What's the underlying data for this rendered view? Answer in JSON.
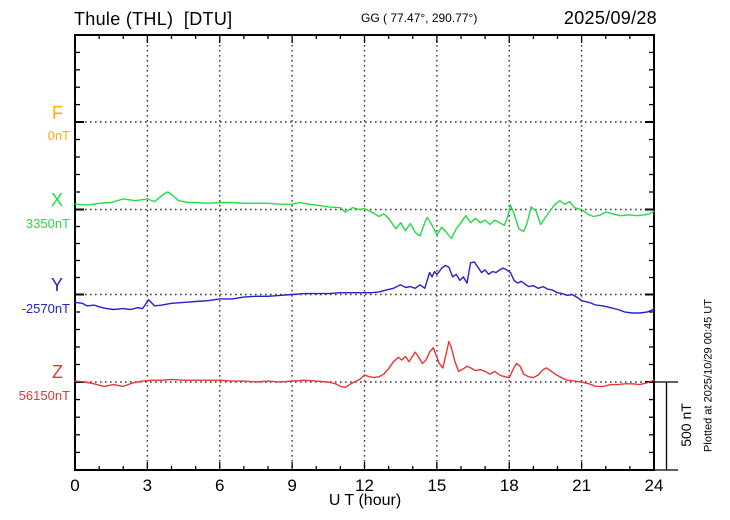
{
  "header": {
    "title": "Thule (THL)  [DTU]",
    "coordinates": "GG ( 77.47°, 290.77°)",
    "date": "2025/09/28"
  },
  "axes": {
    "x_label": "U T (hour)",
    "x_ticks": [
      "0",
      "3",
      "6",
      "9",
      "12",
      "15",
      "18",
      "21",
      "24"
    ],
    "x_range_hours": [
      0,
      24
    ],
    "x_major_interval_hours": 3,
    "x_minor_interval_hours": 1,
    "y_division_nT": 100,
    "y_channel_spacing_nT": 500
  },
  "scale_bar": {
    "label": "500 nT",
    "nT": 500
  },
  "footer_note": "Plotted at 2025/10/29 00:45 UT",
  "chart_data": {
    "type": "line",
    "title": "Thule (THL) [DTU] magnetogram, 2025/09/28",
    "xlabel": "U T (hour)",
    "x_range": [
      0,
      24
    ],
    "grid": "dotted vertical lines every 3 h; dotted horizontal line at each channel baseline",
    "legend_position": "left margin, one colored label per channel",
    "scale": "500 nT per channel division (scale bar at lower right)",
    "series": [
      {
        "name": "F",
        "value_label": "0nT",
        "baseline_nT": 0,
        "color": "#FFAD00",
        "points": []
      },
      {
        "name": "X",
        "value_label": "3350nT",
        "baseline_nT": 3350,
        "color": "#22DD44",
        "points": [
          [
            0,
            3380
          ],
          [
            0.5,
            3375
          ],
          [
            1,
            3385
          ],
          [
            1.5,
            3390
          ],
          [
            2,
            3410
          ],
          [
            2.5,
            3400
          ],
          [
            3,
            3410
          ],
          [
            3.3,
            3395
          ],
          [
            3.7,
            3440
          ],
          [
            3.85,
            3450
          ],
          [
            4,
            3435
          ],
          [
            4.3,
            3400
          ],
          [
            4.7,
            3390
          ],
          [
            5,
            3390
          ],
          [
            5.5,
            3385
          ],
          [
            6,
            3390
          ],
          [
            6.5,
            3390
          ],
          [
            7,
            3385
          ],
          [
            7.5,
            3385
          ],
          [
            8,
            3385
          ],
          [
            8.5,
            3380
          ],
          [
            9,
            3380
          ],
          [
            9.3,
            3390
          ],
          [
            9.7,
            3380
          ],
          [
            10,
            3375
          ],
          [
            10.5,
            3365
          ],
          [
            11,
            3360
          ],
          [
            11.2,
            3335
          ],
          [
            11.5,
            3360
          ],
          [
            11.8,
            3350
          ],
          [
            12,
            3355
          ],
          [
            12.3,
            3335
          ],
          [
            12.6,
            3310
          ],
          [
            12.8,
            3325
          ],
          [
            13,
            3300
          ],
          [
            13.3,
            3240
          ],
          [
            13.5,
            3275
          ],
          [
            13.7,
            3230
          ],
          [
            13.9,
            3270
          ],
          [
            14.1,
            3220
          ],
          [
            14.3,
            3200
          ],
          [
            14.5,
            3275
          ],
          [
            14.6,
            3305
          ],
          [
            14.8,
            3260
          ],
          [
            15,
            3205
          ],
          [
            15.2,
            3250
          ],
          [
            15.4,
            3220
          ],
          [
            15.6,
            3185
          ],
          [
            15.8,
            3240
          ],
          [
            16,
            3275
          ],
          [
            16.2,
            3315
          ],
          [
            16.4,
            3275
          ],
          [
            16.6,
            3300
          ],
          [
            16.8,
            3275
          ],
          [
            17,
            3290
          ],
          [
            17.2,
            3265
          ],
          [
            17.4,
            3290
          ],
          [
            17.6,
            3275
          ],
          [
            17.8,
            3260
          ],
          [
            17.95,
            3315
          ],
          [
            18.05,
            3375
          ],
          [
            18.2,
            3325
          ],
          [
            18.4,
            3240
          ],
          [
            18.6,
            3225
          ],
          [
            18.75,
            3275
          ],
          [
            18.9,
            3365
          ],
          [
            19.1,
            3345
          ],
          [
            19.3,
            3265
          ],
          [
            19.5,
            3305
          ],
          [
            19.7,
            3345
          ],
          [
            19.9,
            3380
          ],
          [
            20.1,
            3400
          ],
          [
            20.3,
            3380
          ],
          [
            20.5,
            3395
          ],
          [
            20.7,
            3360
          ],
          [
            21,
            3350
          ],
          [
            21.3,
            3320
          ],
          [
            21.5,
            3310
          ],
          [
            21.8,
            3320
          ],
          [
            22,
            3335
          ],
          [
            22.3,
            3325
          ],
          [
            22.6,
            3315
          ],
          [
            23,
            3320
          ],
          [
            23.3,
            3315
          ],
          [
            23.6,
            3320
          ],
          [
            23.8,
            3325
          ],
          [
            24,
            3340
          ]
        ]
      },
      {
        "name": "Y",
        "value_label": "-2570nT",
        "baseline_nT": -2570,
        "color": "#2323CC",
        "points": [
          [
            0,
            -2615
          ],
          [
            0.3,
            -2620
          ],
          [
            0.5,
            -2635
          ],
          [
            0.8,
            -2630
          ],
          [
            1,
            -2640
          ],
          [
            1.3,
            -2650
          ],
          [
            1.6,
            -2655
          ],
          [
            2,
            -2650
          ],
          [
            2.3,
            -2655
          ],
          [
            2.6,
            -2645
          ],
          [
            2.8,
            -2650
          ],
          [
            3.05,
            -2600
          ],
          [
            3.3,
            -2635
          ],
          [
            3.6,
            -2630
          ],
          [
            4,
            -2620
          ],
          [
            4.5,
            -2615
          ],
          [
            5,
            -2610
          ],
          [
            5.5,
            -2605
          ],
          [
            6,
            -2595
          ],
          [
            6.5,
            -2595
          ],
          [
            7,
            -2585
          ],
          [
            7.5,
            -2580
          ],
          [
            8,
            -2580
          ],
          [
            8.5,
            -2575
          ],
          [
            9,
            -2570
          ],
          [
            9.5,
            -2565
          ],
          [
            10,
            -2565
          ],
          [
            10.5,
            -2565
          ],
          [
            11,
            -2560
          ],
          [
            11.5,
            -2560
          ],
          [
            12,
            -2560
          ],
          [
            12.3,
            -2560
          ],
          [
            12.6,
            -2555
          ],
          [
            12.9,
            -2545
          ],
          [
            13.2,
            -2535
          ],
          [
            13.5,
            -2515
          ],
          [
            13.7,
            -2530
          ],
          [
            13.9,
            -2525
          ],
          [
            14.1,
            -2535
          ],
          [
            14.3,
            -2515
          ],
          [
            14.5,
            -2535
          ],
          [
            14.7,
            -2445
          ],
          [
            14.8,
            -2470
          ],
          [
            14.9,
            -2440
          ],
          [
            15,
            -2455
          ],
          [
            15.1,
            -2440
          ],
          [
            15.2,
            -2420
          ],
          [
            15.35,
            -2405
          ],
          [
            15.5,
            -2415
          ],
          [
            15.65,
            -2470
          ],
          [
            15.8,
            -2455
          ],
          [
            15.95,
            -2490
          ],
          [
            16.1,
            -2470
          ],
          [
            16.25,
            -2505
          ],
          [
            16.4,
            -2390
          ],
          [
            16.55,
            -2385
          ],
          [
            16.7,
            -2415
          ],
          [
            16.85,
            -2445
          ],
          [
            17,
            -2430
          ],
          [
            17.15,
            -2455
          ],
          [
            17.3,
            -2440
          ],
          [
            17.45,
            -2445
          ],
          [
            17.6,
            -2430
          ],
          [
            17.75,
            -2420
          ],
          [
            17.9,
            -2430
          ],
          [
            18.05,
            -2445
          ],
          [
            18.2,
            -2490
          ],
          [
            18.35,
            -2505
          ],
          [
            18.5,
            -2495
          ],
          [
            18.65,
            -2510
          ],
          [
            18.8,
            -2525
          ],
          [
            19,
            -2520
          ],
          [
            19.2,
            -2535
          ],
          [
            19.4,
            -2525
          ],
          [
            19.6,
            -2540
          ],
          [
            19.8,
            -2545
          ],
          [
            20,
            -2560
          ],
          [
            20.2,
            -2565
          ],
          [
            20.4,
            -2575
          ],
          [
            20.6,
            -2570
          ],
          [
            20.8,
            -2585
          ],
          [
            21,
            -2605
          ],
          [
            21.3,
            -2615
          ],
          [
            21.6,
            -2630
          ],
          [
            21.9,
            -2635
          ],
          [
            22.2,
            -2645
          ],
          [
            22.5,
            -2655
          ],
          [
            22.8,
            -2670
          ],
          [
            23.1,
            -2675
          ],
          [
            23.4,
            -2675
          ],
          [
            23.7,
            -2670
          ],
          [
            23.9,
            -2660
          ],
          [
            24,
            -2650
          ]
        ]
      },
      {
        "name": "Z",
        "value_label": "56150nT",
        "baseline_nT": 56150,
        "color": "#EE3333",
        "points": [
          [
            0,
            56155
          ],
          [
            0.4,
            56150
          ],
          [
            0.8,
            56140
          ],
          [
            1.2,
            56125
          ],
          [
            1.6,
            56135
          ],
          [
            2,
            56125
          ],
          [
            2.4,
            56145
          ],
          [
            2.8,
            56155
          ],
          [
            3.2,
            56160
          ],
          [
            3.6,
            56160
          ],
          [
            4,
            56165
          ],
          [
            4.5,
            56160
          ],
          [
            5,
            56160
          ],
          [
            5.5,
            56160
          ],
          [
            6,
            56160
          ],
          [
            6.5,
            56155
          ],
          [
            7,
            56155
          ],
          [
            7.5,
            56150
          ],
          [
            8,
            56155
          ],
          [
            8.5,
            56150
          ],
          [
            9,
            56155
          ],
          [
            9.5,
            56160
          ],
          [
            10,
            56155
          ],
          [
            10.5,
            56150
          ],
          [
            10.8,
            56140
          ],
          [
            11,
            56125
          ],
          [
            11.2,
            56120
          ],
          [
            11.5,
            56145
          ],
          [
            11.8,
            56165
          ],
          [
            12,
            56190
          ],
          [
            12.2,
            56180
          ],
          [
            12.4,
            56175
          ],
          [
            12.6,
            56180
          ],
          [
            12.8,
            56195
          ],
          [
            13,
            56225
          ],
          [
            13.2,
            56265
          ],
          [
            13.4,
            56290
          ],
          [
            13.55,
            56275
          ],
          [
            13.7,
            56295
          ],
          [
            13.85,
            56265
          ],
          [
            14,
            56300
          ],
          [
            14.1,
            56320
          ],
          [
            14.25,
            56290
          ],
          [
            14.4,
            56255
          ],
          [
            14.55,
            56275
          ],
          [
            14.7,
            56320
          ],
          [
            14.85,
            56345
          ],
          [
            15,
            56290
          ],
          [
            15.1,
            56255
          ],
          [
            15.25,
            56230
          ],
          [
            15.4,
            56320
          ],
          [
            15.5,
            56380
          ],
          [
            15.6,
            56345
          ],
          [
            15.75,
            56265
          ],
          [
            15.9,
            56210
          ],
          [
            16.1,
            56225
          ],
          [
            16.25,
            56240
          ],
          [
            16.4,
            56230
          ],
          [
            16.6,
            56215
          ],
          [
            16.8,
            56220
          ],
          [
            17,
            56210
          ],
          [
            17.2,
            56195
          ],
          [
            17.4,
            56210
          ],
          [
            17.6,
            56190
          ],
          [
            17.8,
            56180
          ],
          [
            18,
            56175
          ],
          [
            18.15,
            56220
          ],
          [
            18.3,
            56255
          ],
          [
            18.45,
            56240
          ],
          [
            18.6,
            56195
          ],
          [
            18.8,
            56180
          ],
          [
            19,
            56175
          ],
          [
            19.2,
            56190
          ],
          [
            19.4,
            56220
          ],
          [
            19.55,
            56230
          ],
          [
            19.7,
            56215
          ],
          [
            19.9,
            56195
          ],
          [
            20.1,
            56180
          ],
          [
            20.4,
            56160
          ],
          [
            20.7,
            56155
          ],
          [
            21,
            56150
          ],
          [
            21.3,
            56140
          ],
          [
            21.6,
            56125
          ],
          [
            21.9,
            56125
          ],
          [
            22.2,
            56135
          ],
          [
            22.5,
            56135
          ],
          [
            22.8,
            56140
          ],
          [
            23.1,
            56140
          ],
          [
            23.4,
            56135
          ],
          [
            23.7,
            56145
          ],
          [
            23.9,
            56155
          ],
          [
            24,
            56160
          ]
        ]
      }
    ]
  }
}
